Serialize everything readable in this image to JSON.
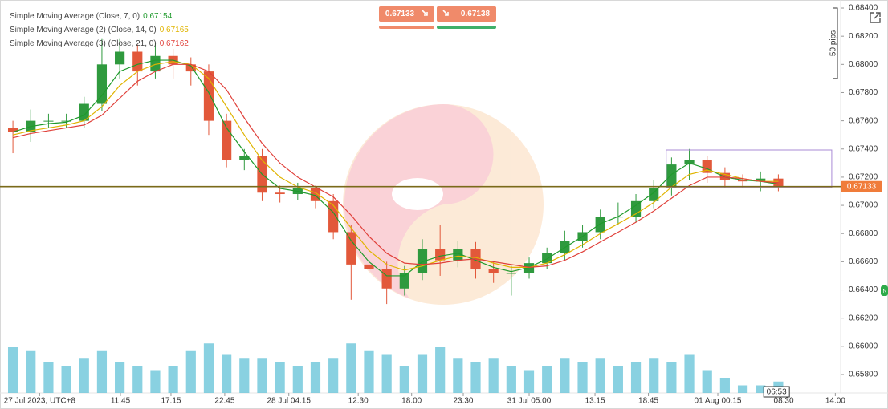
{
  "chart_data": {
    "type": "candlestick",
    "open": [
      0.6755,
      0.6752,
      0.676,
      0.676,
      0.676,
      0.6772,
      0.68,
      0.6809,
      0.6795,
      0.6806,
      0.68,
      0.6795,
      0.676,
      0.6732,
      0.6735,
      0.6709,
      0.6708,
      0.6712,
      0.6703,
      0.6681,
      0.6658,
      0.6655,
      0.6641,
      0.6652,
      0.6669,
      0.6661,
      0.6669,
      0.6655,
      0.6652,
      0.6652,
      0.6659,
      0.6666,
      0.6675,
      0.6681,
      0.6692,
      0.6692,
      0.6703,
      0.6712,
      0.6729,
      0.6732,
      0.6723,
      0.6718,
      0.6717,
      0.6719
    ],
    "high": [
      0.676,
      0.6768,
      0.6765,
      0.6765,
      0.6777,
      0.6818,
      0.6818,
      0.6814,
      0.6815,
      0.6811,
      0.6805,
      0.68,
      0.6765,
      0.674,
      0.674,
      0.6714,
      0.6716,
      0.6714,
      0.6708,
      0.6686,
      0.6665,
      0.666,
      0.6657,
      0.6676,
      0.6686,
      0.6675,
      0.6674,
      0.666,
      0.6657,
      0.6663,
      0.667,
      0.6682,
      0.6686,
      0.6697,
      0.6702,
      0.6708,
      0.6718,
      0.6734,
      0.674,
      0.6735,
      0.6727,
      0.6722,
      0.6724,
      0.6722
    ],
    "low": [
      0.6737,
      0.6745,
      0.6755,
      0.6755,
      0.6755,
      0.6767,
      0.679,
      0.6785,
      0.679,
      0.679,
      0.6785,
      0.675,
      0.6727,
      0.6725,
      0.6703,
      0.6702,
      0.6704,
      0.6698,
      0.6676,
      0.6633,
      0.6624,
      0.663,
      0.6636,
      0.6647,
      0.665,
      0.6656,
      0.6648,
      0.6645,
      0.6636,
      0.6648,
      0.6655,
      0.6661,
      0.667,
      0.6676,
      0.6686,
      0.6688,
      0.6698,
      0.6707,
      0.6718,
      0.6716,
      0.6712,
      0.6712,
      0.671,
      0.671
    ],
    "close": [
      0.6752,
      0.676,
      0.676,
      0.676,
      0.6772,
      0.68,
      0.6809,
      0.6795,
      0.6806,
      0.68,
      0.6795,
      0.676,
      0.6732,
      0.6735,
      0.6709,
      0.6708,
      0.6712,
      0.6703,
      0.6681,
      0.6658,
      0.6655,
      0.6641,
      0.6652,
      0.6669,
      0.6661,
      0.6669,
      0.6655,
      0.6652,
      0.6652,
      0.6659,
      0.6666,
      0.6675,
      0.6681,
      0.6692,
      0.6692,
      0.6703,
      0.6712,
      0.6729,
      0.6732,
      0.6723,
      0.6718,
      0.6717,
      0.6719,
      0.6713
    ],
    "volume": [
      60,
      55,
      40,
      35,
      45,
      55,
      40,
      35,
      30,
      35,
      55,
      65,
      50,
      45,
      45,
      40,
      35,
      40,
      45,
      65,
      55,
      50,
      35,
      50,
      60,
      45,
      40,
      45,
      35,
      30,
      35,
      45,
      40,
      45,
      35,
      40,
      45,
      40,
      50,
      30,
      20,
      10,
      10,
      15
    ],
    "up_color": "#2f9a3e",
    "down_color": "#e2583a",
    "volume_color": "#6cc5d9",
    "series": [
      {
        "name": "Simple Moving Average (Close, 7, 0)",
        "last": 0.67154,
        "color": "#1f9a2c",
        "values": [
          0.6752,
          0.6756,
          0.6758,
          0.6759,
          0.6764,
          0.6778,
          0.6795,
          0.68,
          0.6803,
          0.6803,
          0.6799,
          0.678,
          0.6755,
          0.6738,
          0.6722,
          0.6712,
          0.671,
          0.6707,
          0.6695,
          0.6675,
          0.666,
          0.665,
          0.665,
          0.666,
          0.6664,
          0.6666,
          0.6661,
          0.6656,
          0.6653,
          0.6656,
          0.6662,
          0.667,
          0.6678,
          0.6687,
          0.6692,
          0.67,
          0.6709,
          0.6722,
          0.673,
          0.6726,
          0.672,
          0.6718,
          0.6717,
          0.6715
        ]
      },
      {
        "name": "Simple Moving Average (2) (Close, 14, 0)",
        "last": 0.67165,
        "color": "#e0b400",
        "values": [
          0.675,
          0.6753,
          0.6755,
          0.6757,
          0.676,
          0.677,
          0.6785,
          0.6795,
          0.68,
          0.6802,
          0.68,
          0.679,
          0.677,
          0.675,
          0.6732,
          0.672,
          0.6713,
          0.6709,
          0.67,
          0.6684,
          0.6668,
          0.6658,
          0.6654,
          0.6657,
          0.6661,
          0.6664,
          0.6663,
          0.6659,
          0.6656,
          0.6656,
          0.6659,
          0.6665,
          0.6672,
          0.668,
          0.6687,
          0.6694,
          0.6702,
          0.6713,
          0.6722,
          0.6725,
          0.6722,
          0.6719,
          0.6717,
          0.6717
        ]
      },
      {
        "name": "Simple Moving Average (3) (Close, 21, 0)",
        "last": 0.67162,
        "color": "#e0403a",
        "values": [
          0.6748,
          0.6751,
          0.6753,
          0.6755,
          0.6757,
          0.6764,
          0.6776,
          0.6788,
          0.6795,
          0.68,
          0.68,
          0.6795,
          0.6782,
          0.6762,
          0.6744,
          0.673,
          0.672,
          0.6713,
          0.6706,
          0.6693,
          0.6678,
          0.6666,
          0.6659,
          0.6658,
          0.6659,
          0.6661,
          0.6662,
          0.666,
          0.6658,
          0.6656,
          0.6657,
          0.6661,
          0.6667,
          0.6674,
          0.6681,
          0.6688,
          0.6696,
          0.6705,
          0.6714,
          0.672,
          0.672,
          0.6719,
          0.6717,
          0.6716
        ]
      }
    ],
    "current_price": 0.67133,
    "sell_price": 0.67133,
    "buy_price": 0.67138,
    "ylim": [
      0.65669,
      0.68457
    ],
    "yticks": [
      {
        "value": 0.684,
        "label": "0.68400"
      },
      {
        "value": 0.682,
        "label": "0.68200"
      },
      {
        "value": 0.68,
        "label": "0.68000"
      },
      {
        "value": 0.678,
        "label": "0.67800"
      },
      {
        "value": 0.676,
        "label": "0.67600"
      },
      {
        "value": 0.674,
        "label": "0.67400"
      },
      {
        "value": 0.672,
        "label": "0.67200"
      },
      {
        "value": 0.67,
        "label": "0.67000"
      },
      {
        "value": 0.668,
        "label": "0.66800"
      },
      {
        "value": 0.666,
        "label": "0.66600"
      },
      {
        "value": 0.664,
        "label": "0.66400"
      },
      {
        "value": 0.662,
        "label": "0.66200"
      },
      {
        "value": 0.66,
        "label": "0.66000"
      },
      {
        "value": 0.658,
        "label": "0.65800"
      }
    ],
    "xlim": [
      0,
      47
    ],
    "xticks": [
      {
        "value": 2.0,
        "label": "27 Jul 2023, UTC+8"
      },
      {
        "value": 6.54,
        "label": "11:45"
      },
      {
        "value": 9.38,
        "label": "17:15"
      },
      {
        "value": 12.4,
        "label": "22:45"
      },
      {
        "value": 16.0,
        "label": "28 Jul 04:15"
      },
      {
        "value": 19.9,
        "label": "12:30"
      },
      {
        "value": 22.9,
        "label": "18:00"
      },
      {
        "value": 25.8,
        "label": "23:30"
      },
      {
        "value": 29.5,
        "label": "31 Jul 05:00"
      },
      {
        "value": 33.2,
        "label": "13:15"
      },
      {
        "value": 36.2,
        "label": "18:45"
      },
      {
        "value": 40.1,
        "label": "01 Aug 00:15"
      },
      {
        "value": 43.8,
        "label": "08:30"
      },
      {
        "value": 46.7,
        "label": "14:00"
      }
    ],
    "crosshair": {
      "value": 43.4,
      "label": "06:53"
    },
    "pip_ruler": {
      "label": "50 pips",
      "from": 0.684,
      "to": 0.679
    },
    "rectangle": {
      "x": [
        37.2,
        46.5
      ],
      "y": [
        0.67125,
        0.67393
      ],
      "color": "#a98bd6"
    },
    "side_tab": "N"
  }
}
